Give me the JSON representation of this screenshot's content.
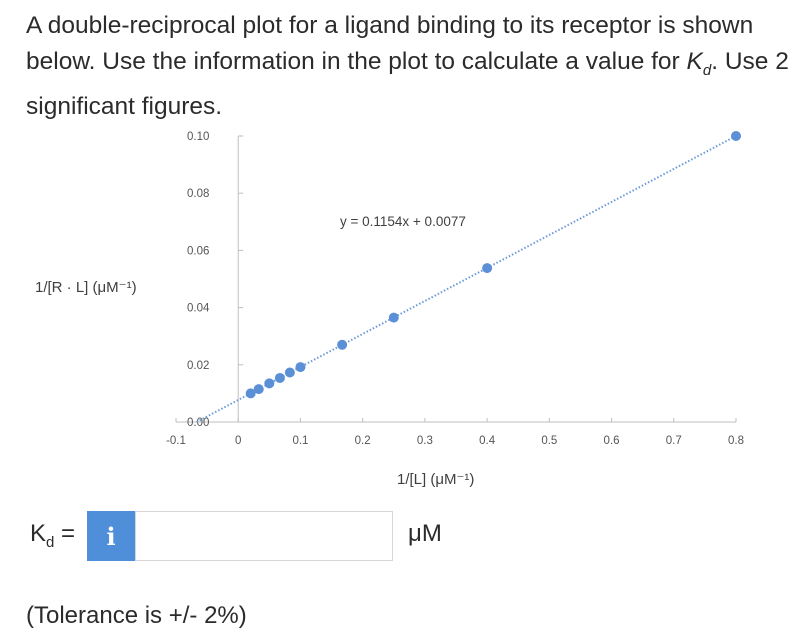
{
  "question": {
    "part1": "A double-reciprocal plot for a ligand binding to its receptor is shown below. Use the information in the plot to calculate a value for ",
    "kd_symbol": "K",
    "kd_subscript": "d",
    "part2": ". Use 2 significant figures."
  },
  "answer": {
    "label_symbol": "K",
    "label_subscript": "d",
    "equals": "=",
    "info_label": "i",
    "value": "",
    "unit": "μM"
  },
  "tolerance": "(Tolerance is +/- 2%)",
  "colors": {
    "marker": "#5b8fd6",
    "trendline": "#6b9ad9",
    "info_button": "#4f8fd9",
    "axis": "#bfbfbf"
  },
  "chart_data": {
    "type": "scatter",
    "xlabel": "1/[L] (μM⁻¹)",
    "ylabel": "1/[R · L] (μM⁻¹)",
    "xlim": [
      -0.1,
      0.8
    ],
    "ylim": [
      0.0,
      0.1
    ],
    "x_ticks": [
      "-0.1",
      "0",
      "0.1",
      "0.2",
      "0.3",
      "0.4",
      "0.5",
      "0.6",
      "0.7",
      "0.8"
    ],
    "y_ticks": [
      "0.00",
      "0.02",
      "0.04",
      "0.06",
      "0.08",
      "0.10"
    ],
    "x_tick_values": [
      -0.1,
      0,
      0.1,
      0.2,
      0.3,
      0.4,
      0.5,
      0.6,
      0.7,
      0.8
    ],
    "y_tick_values": [
      0.0,
      0.02,
      0.04,
      0.06,
      0.08,
      0.1
    ],
    "points": [
      {
        "x": 0.02,
        "y": 0.01
      },
      {
        "x": 0.033,
        "y": 0.0115
      },
      {
        "x": 0.05,
        "y": 0.0135
      },
      {
        "x": 0.067,
        "y": 0.0154
      },
      {
        "x": 0.083,
        "y": 0.0173
      },
      {
        "x": 0.1,
        "y": 0.0192
      },
      {
        "x": 0.167,
        "y": 0.027
      },
      {
        "x": 0.25,
        "y": 0.0365
      },
      {
        "x": 0.4,
        "y": 0.0538
      },
      {
        "x": 0.8,
        "y": 0.1
      }
    ],
    "trendline": {
      "slope": 0.1154,
      "intercept": 0.0077,
      "x_start": -0.067,
      "x_end": 0.8,
      "style": "dotted"
    },
    "annotation": "y = 0.1154x + 0.0077",
    "grid": false,
    "legend": "none"
  }
}
